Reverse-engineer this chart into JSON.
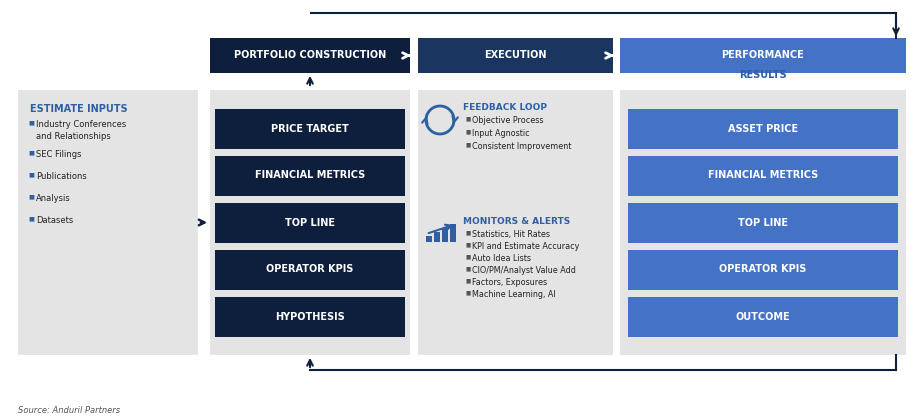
{
  "source": "Source: Anduril Partners",
  "dark_navy": "#0d1f3c",
  "medium_navy": "#1a3560",
  "medium_blue": "#2e5fa3",
  "light_blue": "#4472c4",
  "bg_gray": "#e4e4e4",
  "header_labels": [
    "PORTFOLIO CONSTRUCTION",
    "EXECUTION",
    "PERFORMANCE"
  ],
  "left_box_label": "ESTIMATE INPUTS",
  "left_box_items": [
    "Industry Conferences\nand Relationships",
    "SEC Filings",
    "Publications",
    "Analysis",
    "Datasets"
  ],
  "pc_boxes": [
    "PRICE TARGET",
    "FINANCIAL METRICS",
    "TOP LINE",
    "OPERATOR KPIS",
    "HYPOTHESIS"
  ],
  "perf_boxes": [
    "ASSET PRICE",
    "FINANCIAL METRICS",
    "TOP LINE",
    "OPERATOR KPIS",
    "OUTCOME"
  ],
  "feedback_title": "FEEDBACK LOOP",
  "feedback_items": [
    "Objective Process",
    "Input Agnostic",
    "Consistent Improvement"
  ],
  "monitors_title": "MONITORS & ALERTS",
  "monitors_items": [
    "Statistics, Hit Rates",
    "KPI and Estimate Accuracy",
    "Auto Idea Lists",
    "CIO/PM/Analyst Value Add",
    "Factors, Exposures",
    "Machine Learning, AI"
  ],
  "results_label": "RESULTS"
}
